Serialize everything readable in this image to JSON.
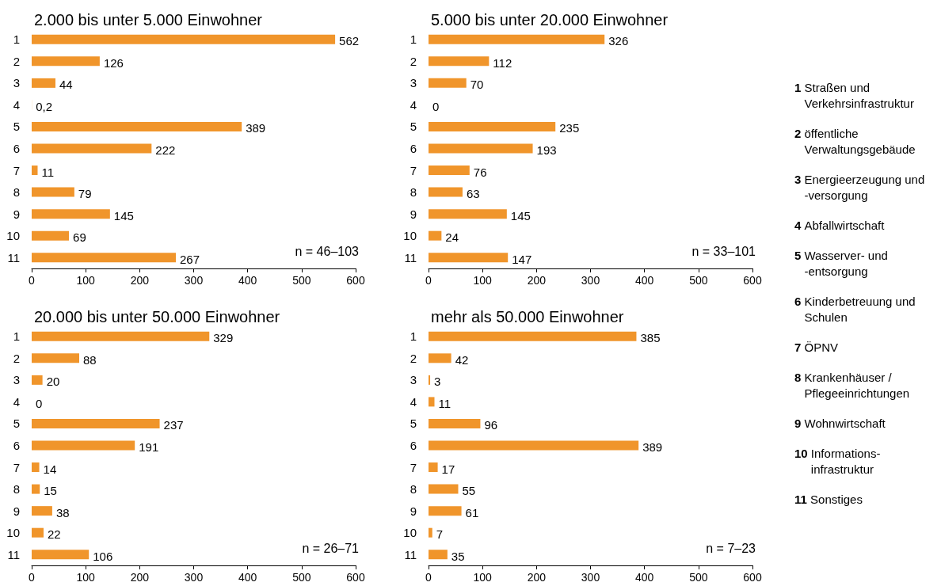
{
  "chart_data": [
    {
      "type": "bar",
      "orientation": "horizontal",
      "title": "2.000 bis unter 5.000 Einwohner",
      "categories": [
        "1",
        "2",
        "3",
        "4",
        "5",
        "6",
        "7",
        "8",
        "9",
        "10",
        "11"
      ],
      "values": [
        562,
        126,
        44,
        0.2,
        389,
        222,
        11,
        79,
        145,
        69,
        267
      ],
      "value_labels": [
        "562",
        "126",
        "44",
        "0,2",
        "389",
        "222",
        "11",
        "79",
        "145",
        "69",
        "267"
      ],
      "color": "#f0952b",
      "xlim": [
        0,
        600
      ],
      "xticks": [
        0,
        100,
        200,
        300,
        400,
        500,
        600
      ],
      "annotations": [
        "n = 46–103"
      ]
    },
    {
      "type": "bar",
      "orientation": "horizontal",
      "title": "5.000 bis unter 20.000 Einwohner",
      "categories": [
        "1",
        "2",
        "3",
        "4",
        "5",
        "6",
        "7",
        "8",
        "9",
        "10",
        "11"
      ],
      "values": [
        326,
        112,
        70,
        0,
        235,
        193,
        76,
        63,
        145,
        24,
        147
      ],
      "value_labels": [
        "326",
        "112",
        "70",
        "0",
        "235",
        "193",
        "76",
        "63",
        "145",
        "24",
        "147"
      ],
      "color": "#f0952b",
      "xlim": [
        0,
        600
      ],
      "xticks": [
        0,
        100,
        200,
        300,
        400,
        500,
        600
      ],
      "annotations": [
        "n = 33–101"
      ]
    },
    {
      "type": "bar",
      "orientation": "horizontal",
      "title": "20.000 bis unter 50.000 Einwohner",
      "categories": [
        "1",
        "2",
        "3",
        "4",
        "5",
        "6",
        "7",
        "8",
        "9",
        "10",
        "11"
      ],
      "values": [
        329,
        88,
        20,
        0,
        237,
        191,
        14,
        15,
        38,
        22,
        106
      ],
      "value_labels": [
        "329",
        "88",
        "20",
        "0",
        "237",
        "191",
        "14",
        "15",
        "38",
        "22",
        "106"
      ],
      "color": "#f0952b",
      "xlim": [
        0,
        600
      ],
      "xticks": [
        0,
        100,
        200,
        300,
        400,
        500,
        600
      ],
      "annotations": [
        "n = 26–71"
      ]
    },
    {
      "type": "bar",
      "orientation": "horizontal",
      "title": "mehr als 50.000 Einwohner",
      "categories": [
        "1",
        "2",
        "3",
        "4",
        "5",
        "6",
        "7",
        "8",
        "9",
        "10",
        "11"
      ],
      "values": [
        385,
        42,
        3,
        11,
        96,
        389,
        17,
        55,
        61,
        7,
        35
      ],
      "value_labels": [
        "385",
        "42",
        "3",
        "11",
        "96",
        "389",
        "17",
        "55",
        "61",
        "7",
        "35"
      ],
      "color": "#f0952b",
      "xlim": [
        0,
        600
      ],
      "xticks": [
        0,
        100,
        200,
        300,
        400,
        500,
        600
      ],
      "annotations": [
        "n = 7–23"
      ]
    },
    {
      "type": "other",
      "annotations": [
        "1 Straßen und Verkehrsinfrastruktur",
        "2 öffentliche Verwaltungsgebäude",
        "3 Energieerzeugung und -versorgung",
        "4 Abfallwirtschaft",
        "5 Wasserver- und -entsorgung",
        "6 Kinderbetreuung und Schulen",
        "7 ÖPNV",
        "8 Krankenhäuser / Pflegeeinrichtungen",
        "9 Wohnwirtschaft",
        "10 Informations-infrastruktur",
        "11 Sonstiges"
      ]
    }
  ]
}
